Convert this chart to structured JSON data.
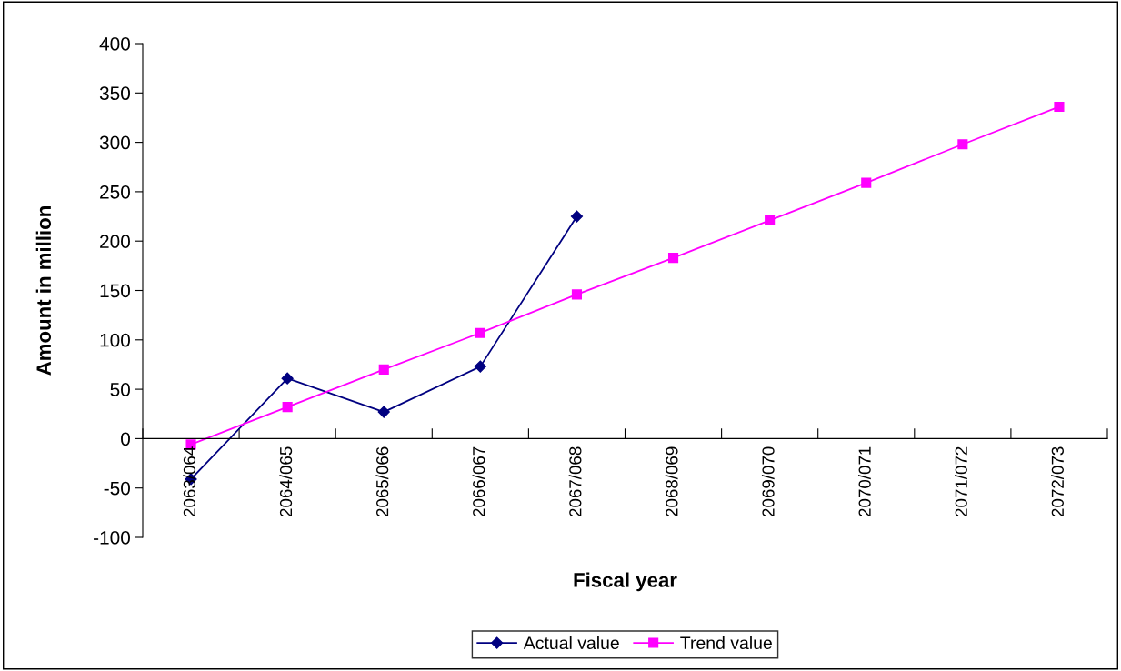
{
  "chart_data": {
    "type": "line",
    "xlabel": "Fiscal year",
    "ylabel": "Amount in million",
    "categories": [
      "2063/064",
      "2064/065",
      "2065/066",
      "2066/067",
      "2067/068",
      "2068/069",
      "2069/070",
      "2070/071",
      "2071/072",
      "2072/073"
    ],
    "series": [
      {
        "name": "Actual value",
        "color": "#000080",
        "marker": "diamond",
        "values": [
          -41,
          61,
          27,
          73,
          225,
          null,
          null,
          null,
          null,
          null
        ]
      },
      {
        "name": "Trend value",
        "color": "#ff00ff",
        "marker": "square",
        "values": [
          -6,
          32,
          70,
          107,
          146,
          183,
          221,
          259,
          298,
          336
        ]
      }
    ],
    "ylim": [
      -100,
      400
    ],
    "yticks": [
      -100,
      -50,
      0,
      50,
      100,
      150,
      200,
      250,
      300,
      350,
      400
    ],
    "grid": false,
    "legend": "bottom"
  }
}
